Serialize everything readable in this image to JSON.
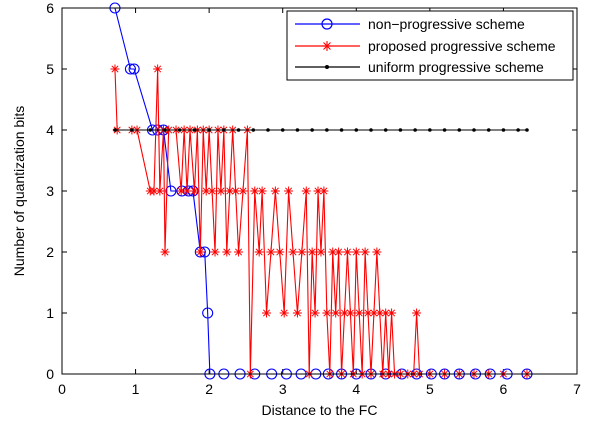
{
  "chart_data": {
    "type": "line",
    "title": "",
    "xlabel": "Distance to the FC",
    "ylabel": "Number of quantization bits",
    "xlim": [
      0,
      7
    ],
    "ylim": [
      0,
      6
    ],
    "xticks": [
      "0",
      "1",
      "2",
      "3",
      "4",
      "5",
      "6",
      "7"
    ],
    "yticks": [
      "0",
      "1",
      "2",
      "3",
      "4",
      "5",
      "6"
    ],
    "grid": false,
    "legend_position": "top-right",
    "series": [
      {
        "name": "non−progressive scheme",
        "color": "#0000ff",
        "marker": "circle",
        "x": [
          0.72,
          0.93,
          0.98,
          1.23,
          1.3,
          1.38,
          1.48,
          1.63,
          1.72,
          1.78,
          1.88,
          1.94,
          1.98,
          2.01,
          2.2,
          2.42,
          2.62,
          2.85,
          3.05,
          3.25,
          3.45,
          3.62,
          3.8,
          4.0,
          4.2,
          4.4,
          4.62,
          4.82,
          5.02,
          5.2,
          5.4,
          5.62,
          5.82,
          6.05,
          6.32
        ],
        "y": [
          6,
          5,
          5,
          4,
          4,
          4,
          3,
          3,
          3,
          3,
          2,
          2,
          1,
          0,
          0,
          0,
          0,
          0,
          0,
          0,
          0,
          0,
          0,
          0,
          0,
          0,
          0,
          0,
          0,
          0,
          0,
          0,
          0,
          0,
          0
        ]
      },
      {
        "name": "proposed progressive scheme",
        "color": "#ff0000",
        "marker": "star",
        "x": [
          0.72,
          0.75,
          0.95,
          1.02,
          1.2,
          1.25,
          1.3,
          1.33,
          1.38,
          1.4,
          1.45,
          1.55,
          1.62,
          1.66,
          1.7,
          1.74,
          1.8,
          1.84,
          1.88,
          1.92,
          1.96,
          2.0,
          2.04,
          2.08,
          2.12,
          2.16,
          2.2,
          2.24,
          2.28,
          2.32,
          2.36,
          2.4,
          2.46,
          2.52,
          2.56,
          2.62,
          2.68,
          2.72,
          2.78,
          2.84,
          2.9,
          2.96,
          3.02,
          3.08,
          3.14,
          3.2,
          3.26,
          3.32,
          3.36,
          3.4,
          3.44,
          3.48,
          3.52,
          3.56,
          3.6,
          3.64,
          3.68,
          3.72,
          3.76,
          3.8,
          3.84,
          3.88,
          3.92,
          3.96,
          4.0,
          4.04,
          4.08,
          4.12,
          4.16,
          4.2,
          4.24,
          4.28,
          4.32,
          4.36,
          4.4,
          4.44,
          4.48,
          4.52,
          4.6,
          4.7,
          4.78,
          4.82,
          4.86,
          5.0,
          5.2,
          5.4,
          5.6,
          5.8,
          6.0,
          6.32
        ],
        "y": [
          5,
          4,
          4,
          4,
          3,
          3,
          5,
          3,
          4,
          2,
          4,
          4,
          3,
          4,
          3,
          4,
          3,
          4,
          2,
          4,
          3,
          4,
          3,
          2,
          4,
          3,
          4,
          2,
          3,
          4,
          3,
          2,
          3,
          4,
          0,
          3,
          2,
          3,
          1,
          2,
          3,
          2,
          1,
          3,
          2,
          1,
          2,
          3,
          0,
          2,
          1,
          3,
          2,
          3,
          1,
          0,
          2,
          1,
          2,
          0,
          1,
          2,
          1,
          0,
          2,
          1,
          0,
          2,
          1,
          0,
          1,
          2,
          1,
          0,
          1,
          0,
          1,
          0,
          0,
          0,
          0,
          1,
          0,
          0,
          0,
          0,
          0,
          0,
          0,
          0
        ]
      },
      {
        "name": "uniform progressive scheme",
        "color": "#000000",
        "marker": "dot",
        "x": [
          0.72,
          0.95,
          1.2,
          1.4,
          1.6,
          1.8,
          2.0,
          2.2,
          2.4,
          2.6,
          2.8,
          3.0,
          3.2,
          3.4,
          3.6,
          3.8,
          4.0,
          4.2,
          4.4,
          4.6,
          4.8,
          5.0,
          5.2,
          5.4,
          5.6,
          5.8,
          6.0,
          6.2,
          6.32
        ],
        "y": [
          4,
          4,
          4,
          4,
          4,
          4,
          4,
          4,
          4,
          4,
          4,
          4,
          4,
          4,
          4,
          4,
          4,
          4,
          4,
          4,
          4,
          4,
          4,
          4,
          4,
          4,
          4,
          4,
          4
        ]
      }
    ]
  }
}
